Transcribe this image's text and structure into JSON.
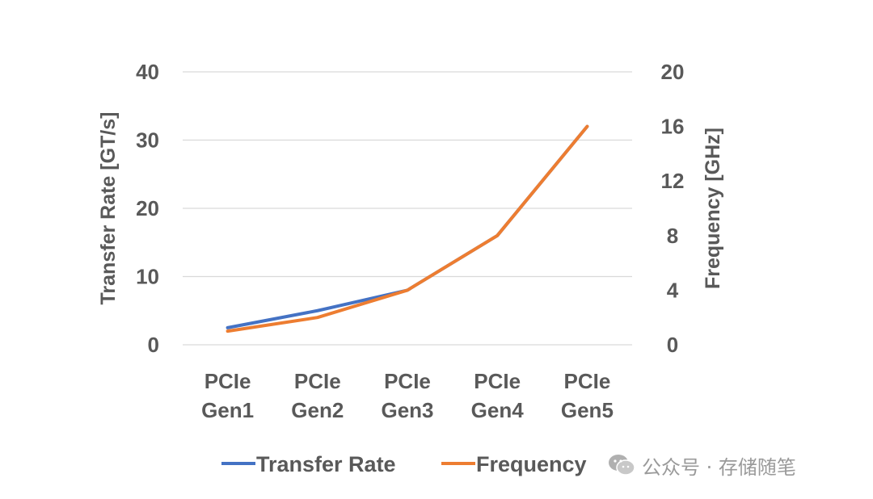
{
  "chart_data": {
    "type": "line",
    "categories": [
      [
        "PCIe",
        "Gen1"
      ],
      [
        "PCIe",
        "Gen2"
      ],
      [
        "PCIe",
        "Gen3"
      ],
      [
        "PCIe",
        "Gen4"
      ],
      [
        "PCIe",
        "Gen5"
      ]
    ],
    "y_left": {
      "label": "Transfer Rate [GT/s]",
      "ticks": [
        0,
        10,
        20,
        30,
        40
      ],
      "ylim": [
        0,
        40
      ]
    },
    "y_right": {
      "label": "Frequency [GHz]",
      "ticks": [
        0,
        4,
        8,
        12,
        16,
        20
      ],
      "ylim": [
        0,
        20
      ]
    },
    "series": [
      {
        "name": "Transfer Rate",
        "axis": "left",
        "color": "#4472C4",
        "values": [
          2.5,
          5,
          8,
          16,
          32
        ]
      },
      {
        "name": "Frequency",
        "axis": "right",
        "color": "#ED7D31",
        "values": [
          1,
          2,
          4,
          8,
          16
        ]
      }
    ],
    "grid": true,
    "legend": "bottom-center"
  },
  "watermark": {
    "text": "公众号 · 存储随笔",
    "icon": "wechat-icon"
  }
}
